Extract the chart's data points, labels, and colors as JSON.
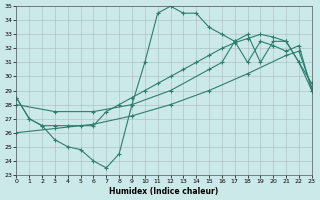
{
  "xlabel": "Humidex (Indice chaleur)",
  "xlim": [
    0,
    23
  ],
  "ylim": [
    23,
    35
  ],
  "bg_color": "#cce9e9",
  "line_color": "#2d7d6f",
  "line1_x": [
    0,
    1,
    2,
    3,
    4,
    5,
    6,
    7,
    8,
    9,
    10,
    11,
    12,
    13,
    14,
    15,
    16,
    17,
    18,
    19,
    20,
    21,
    22,
    23
  ],
  "line1_y": [
    28.5,
    27.0,
    26.5,
    26.5,
    26.5,
    26.5,
    26.5,
    27.5,
    28.0,
    28.5,
    29.0,
    29.5,
    30.0,
    30.5,
    31.0,
    31.5,
    32.0,
    32.4,
    32.7,
    33.0,
    32.8,
    32.5,
    31.0,
    29.0
  ],
  "line2_x": [
    0,
    1,
    2,
    3,
    4,
    5,
    6,
    7,
    8,
    9,
    10,
    11,
    12,
    13,
    14,
    15,
    16,
    17,
    18,
    19,
    20,
    21,
    22,
    23
  ],
  "line2_y": [
    28.5,
    27.0,
    26.5,
    25.5,
    25.0,
    24.8,
    24.0,
    23.5,
    24.5,
    28.0,
    31.0,
    34.5,
    35.0,
    34.5,
    34.5,
    33.5,
    33.0,
    32.5,
    31.0,
    32.5,
    32.2,
    31.8,
    32.2,
    29.0
  ],
  "line3_x": [
    0,
    3,
    6,
    9,
    12,
    15,
    18,
    21,
    22,
    23
  ],
  "line3_y": [
    26.0,
    26.3,
    26.6,
    27.2,
    28.0,
    29.0,
    30.2,
    31.5,
    31.8,
    29.2
  ],
  "line4_x": [
    0,
    3,
    6,
    9,
    12,
    15,
    16,
    17,
    18,
    19,
    20,
    21,
    22,
    23
  ],
  "line4_y": [
    28.0,
    27.5,
    27.5,
    28.0,
    29.0,
    30.5,
    31.0,
    32.5,
    33.0,
    31.0,
    32.5,
    32.5,
    31.0,
    29.5
  ]
}
